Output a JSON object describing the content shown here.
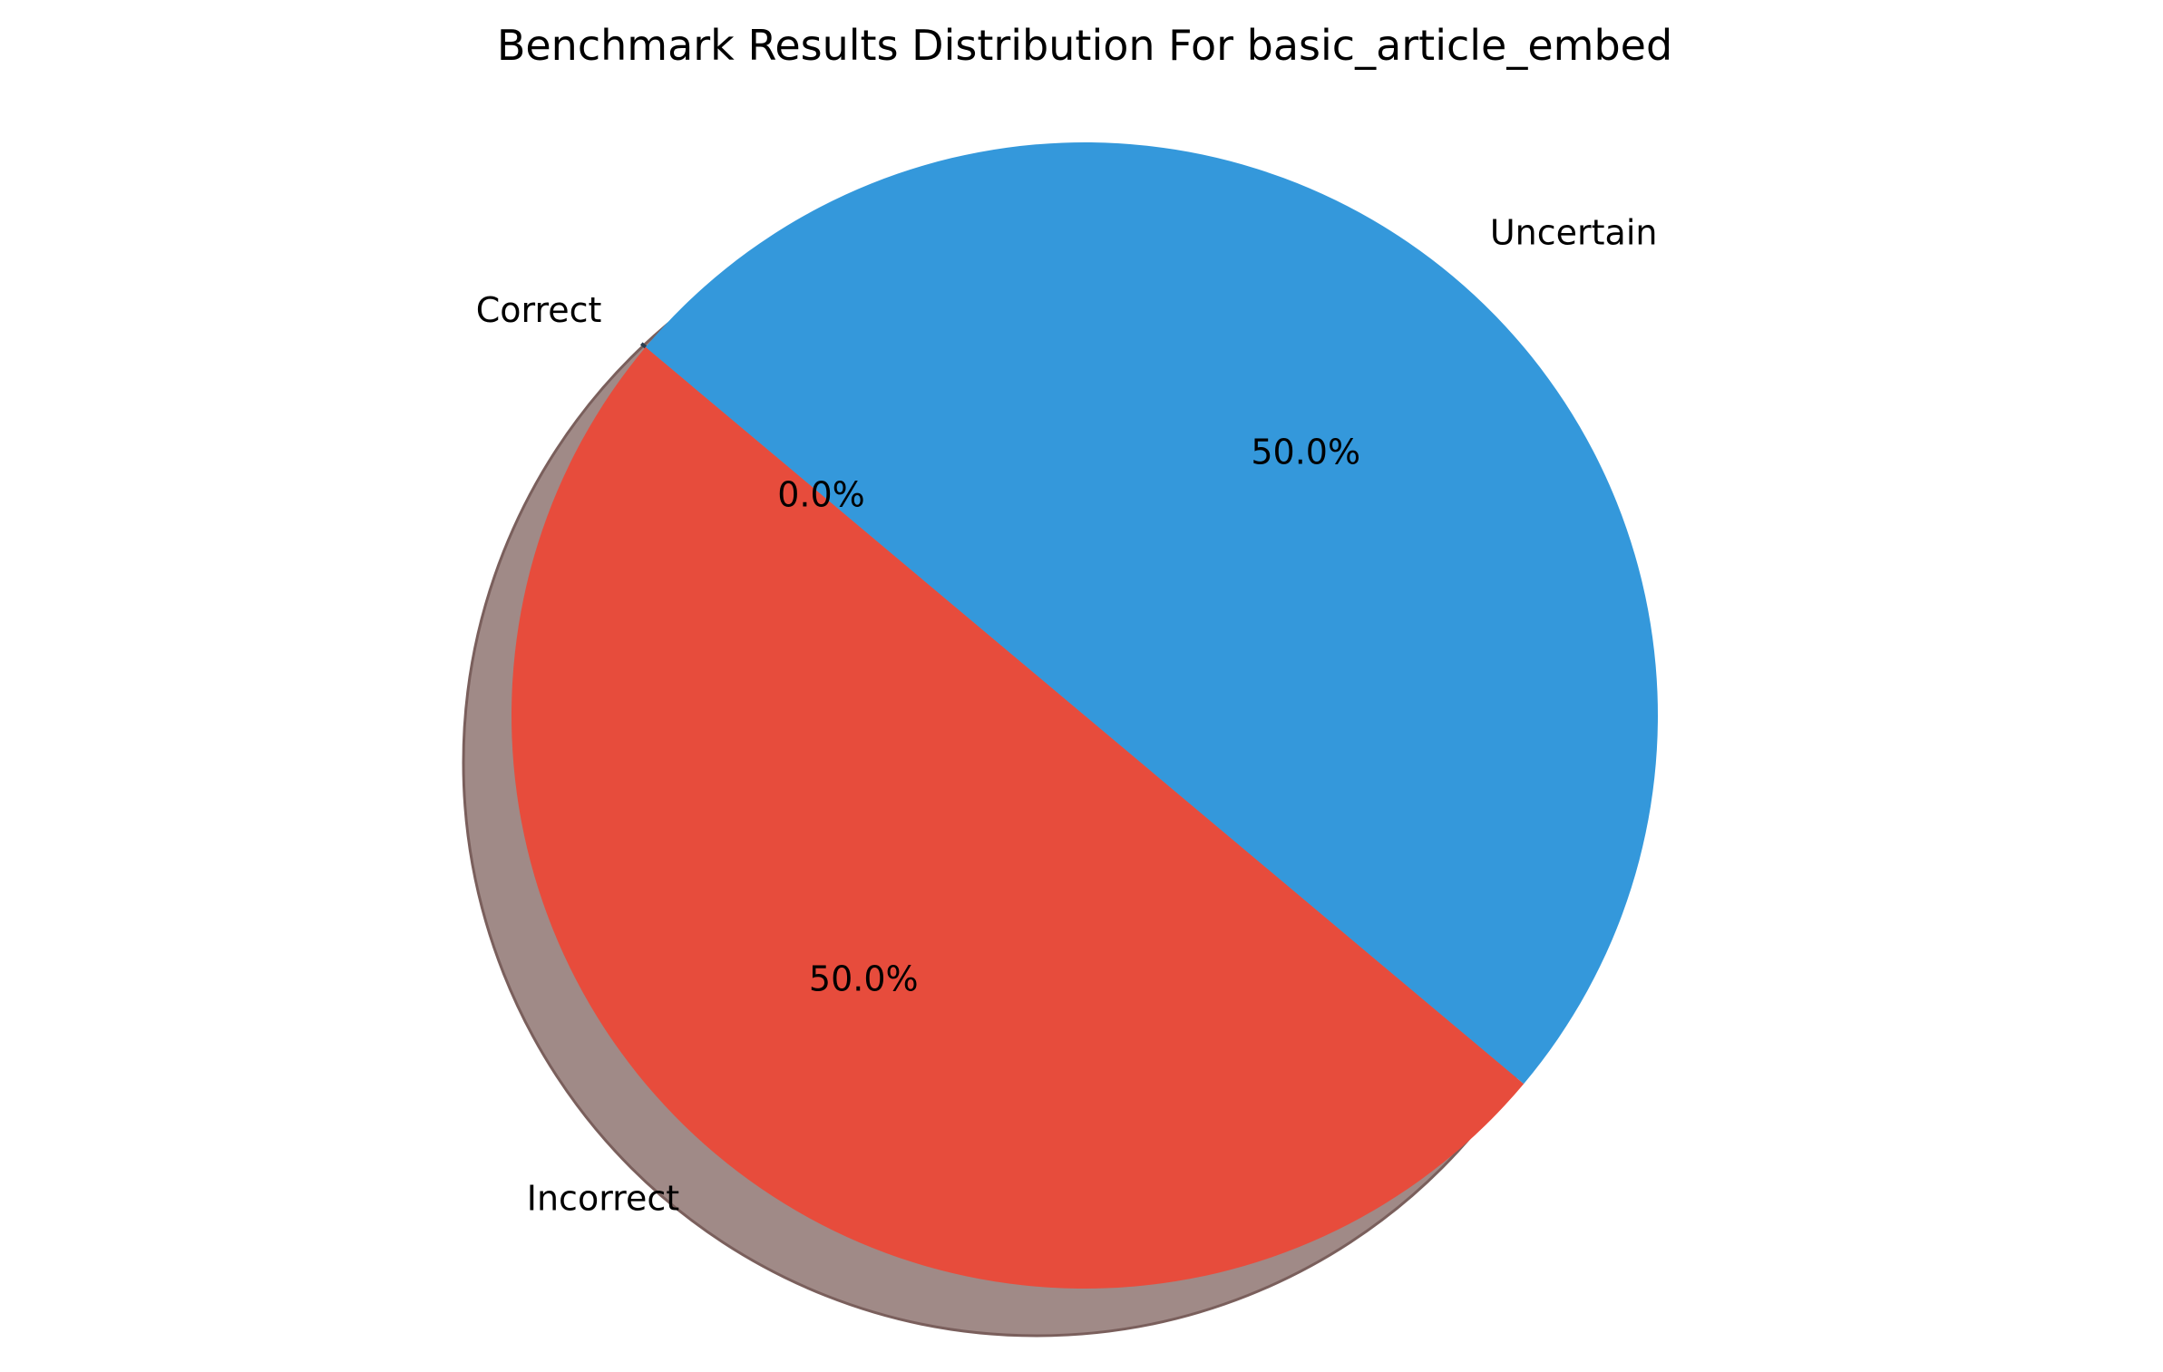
{
  "chart_data": {
    "type": "pie",
    "title": "Benchmark Results Distribution For basic_article_embed",
    "start_angle_deg": 140,
    "shadow": true,
    "slices": [
      {
        "label": "Correct",
        "value": 0.0,
        "pct_label": "0.0%",
        "color": "#2ecc71"
      },
      {
        "label": "Incorrect",
        "value": 50.0,
        "pct_label": "50.0%",
        "color": "#e74c3c"
      },
      {
        "label": "Uncertain",
        "value": 50.0,
        "pct_label": "50.0%",
        "color": "#3498db"
      }
    ]
  }
}
